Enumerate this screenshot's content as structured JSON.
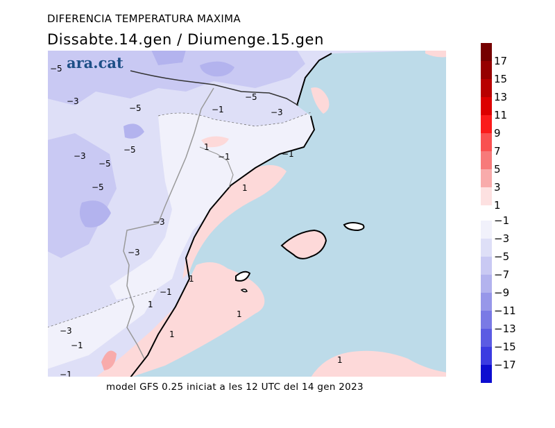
{
  "header": {
    "title": "DIFERENCIA TEMPERATURA MAXIMA",
    "subtitle": "Dissabte.14.gen / Diumenge.15.gen"
  },
  "logo": {
    "text": "ara.cat"
  },
  "footer": {
    "text": "model GFS 0.25 iniciat a les 12 UTC del 14 gen 2023"
  },
  "colors": {
    "sea": "#bddbe9",
    "pos1": "#fdd9d9",
    "pos3": "#f8abab",
    "neg1": "#f1f1fb",
    "neg3": "#dedff7",
    "neg5": "#c9c9f3",
    "neg7": "#b3b3ee",
    "coast": "#000000",
    "border": "#333333",
    "region_border": "#a0a0a0"
  },
  "legend": {
    "positive": [
      {
        "label": "17",
        "color": "#750000"
      },
      {
        "label": "15",
        "color": "#960000"
      },
      {
        "label": "13",
        "color": "#b80000"
      },
      {
        "label": "11",
        "color": "#dc0000"
      },
      {
        "label": "9",
        "color": "#fb1b1b"
      },
      {
        "label": "7",
        "color": "#f95151"
      },
      {
        "label": "5",
        "color": "#f77a7a"
      },
      {
        "label": "3",
        "color": "#f8abab"
      },
      {
        "label": "1",
        "color": "#fde1e1"
      }
    ],
    "negative": [
      {
        "label": "−1",
        "color": "#f1f1fb"
      },
      {
        "label": "−3",
        "color": "#dedff7"
      },
      {
        "label": "−5",
        "color": "#c9c9f3"
      },
      {
        "label": "−7",
        "color": "#b3b3ee"
      },
      {
        "label": "−9",
        "color": "#9797e9"
      },
      {
        "label": "−11",
        "color": "#7a7ae5"
      },
      {
        "label": "−13",
        "color": "#5b5be3"
      },
      {
        "label": "−15",
        "color": "#3b3be1"
      },
      {
        "label": "−17",
        "color": "#0d0dd0"
      }
    ]
  },
  "contour_labels": [
    {
      "text": "−5"
    },
    {
      "text": "−3"
    },
    {
      "text": "−5"
    },
    {
      "text": "−3"
    },
    {
      "text": "−5"
    },
    {
      "text": "−5"
    },
    {
      "text": "−5"
    },
    {
      "text": "−3"
    },
    {
      "text": "−1"
    },
    {
      "text": "−5"
    },
    {
      "text": "−3"
    },
    {
      "text": "1"
    },
    {
      "text": "−1"
    },
    {
      "text": "−1"
    },
    {
      "text": "1"
    },
    {
      "text": "−3"
    },
    {
      "text": "1"
    },
    {
      "text": "−1"
    },
    {
      "text": "1"
    },
    {
      "text": "1"
    },
    {
      "text": "−3"
    },
    {
      "text": "−1"
    },
    {
      "text": "1"
    },
    {
      "text": "1"
    },
    {
      "text": "−1"
    }
  ]
}
